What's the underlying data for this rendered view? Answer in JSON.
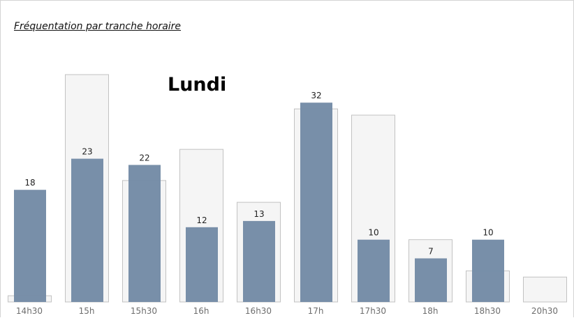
{
  "chart_data": {
    "type": "bar",
    "title": "Fréquentation par tranche horaire",
    "annotation": "Lundi",
    "categories": [
      "14h30",
      "15h",
      "15h30",
      "16h",
      "16h30",
      "17h",
      "17h30",
      "18h",
      "18h30",
      "20h30"
    ],
    "series": [
      {
        "values": [
          18,
          23,
          22,
          12,
          13,
          32,
          10,
          7,
          10,
          null
        ],
        "data_labels": [
          "18",
          "23",
          "22",
          "12",
          "13",
          "32",
          "10",
          "7",
          "10",
          ""
        ],
        "color": "#748ba6"
      },
      {
        "values": [
          1,
          36.5,
          19.5,
          24.5,
          16,
          31,
          30,
          10,
          5,
          4
        ],
        "color": "#f5f5f5",
        "border_color": "#c2c2c2"
      }
    ],
    "xlabel": "",
    "ylabel": "",
    "ylim": [
      0,
      36.5
    ],
    "grid": false,
    "legend": "none"
  }
}
